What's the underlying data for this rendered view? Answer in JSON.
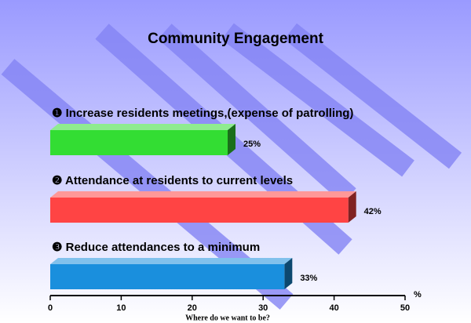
{
  "chart_data": {
    "type": "bar3d",
    "orientation": "horizontal",
    "title": "Community Engagement",
    "categories": [
      "❶ Increase residents meetings,(expense of patrolling)",
      "❷ Attendance at residents to current levels",
      "❸ Reduce attendances to a minimum"
    ],
    "values": [
      25,
      42,
      33
    ],
    "value_labels": [
      "25%",
      "42%",
      "33%"
    ],
    "colors": [
      "#33dd33",
      "#ff4444",
      "#1a8fdd"
    ],
    "xlim": [
      0,
      50
    ],
    "xticks": [
      0,
      10,
      20,
      30,
      40,
      50
    ],
    "x_unit": "%",
    "x_label": "Where do we want to be?"
  }
}
